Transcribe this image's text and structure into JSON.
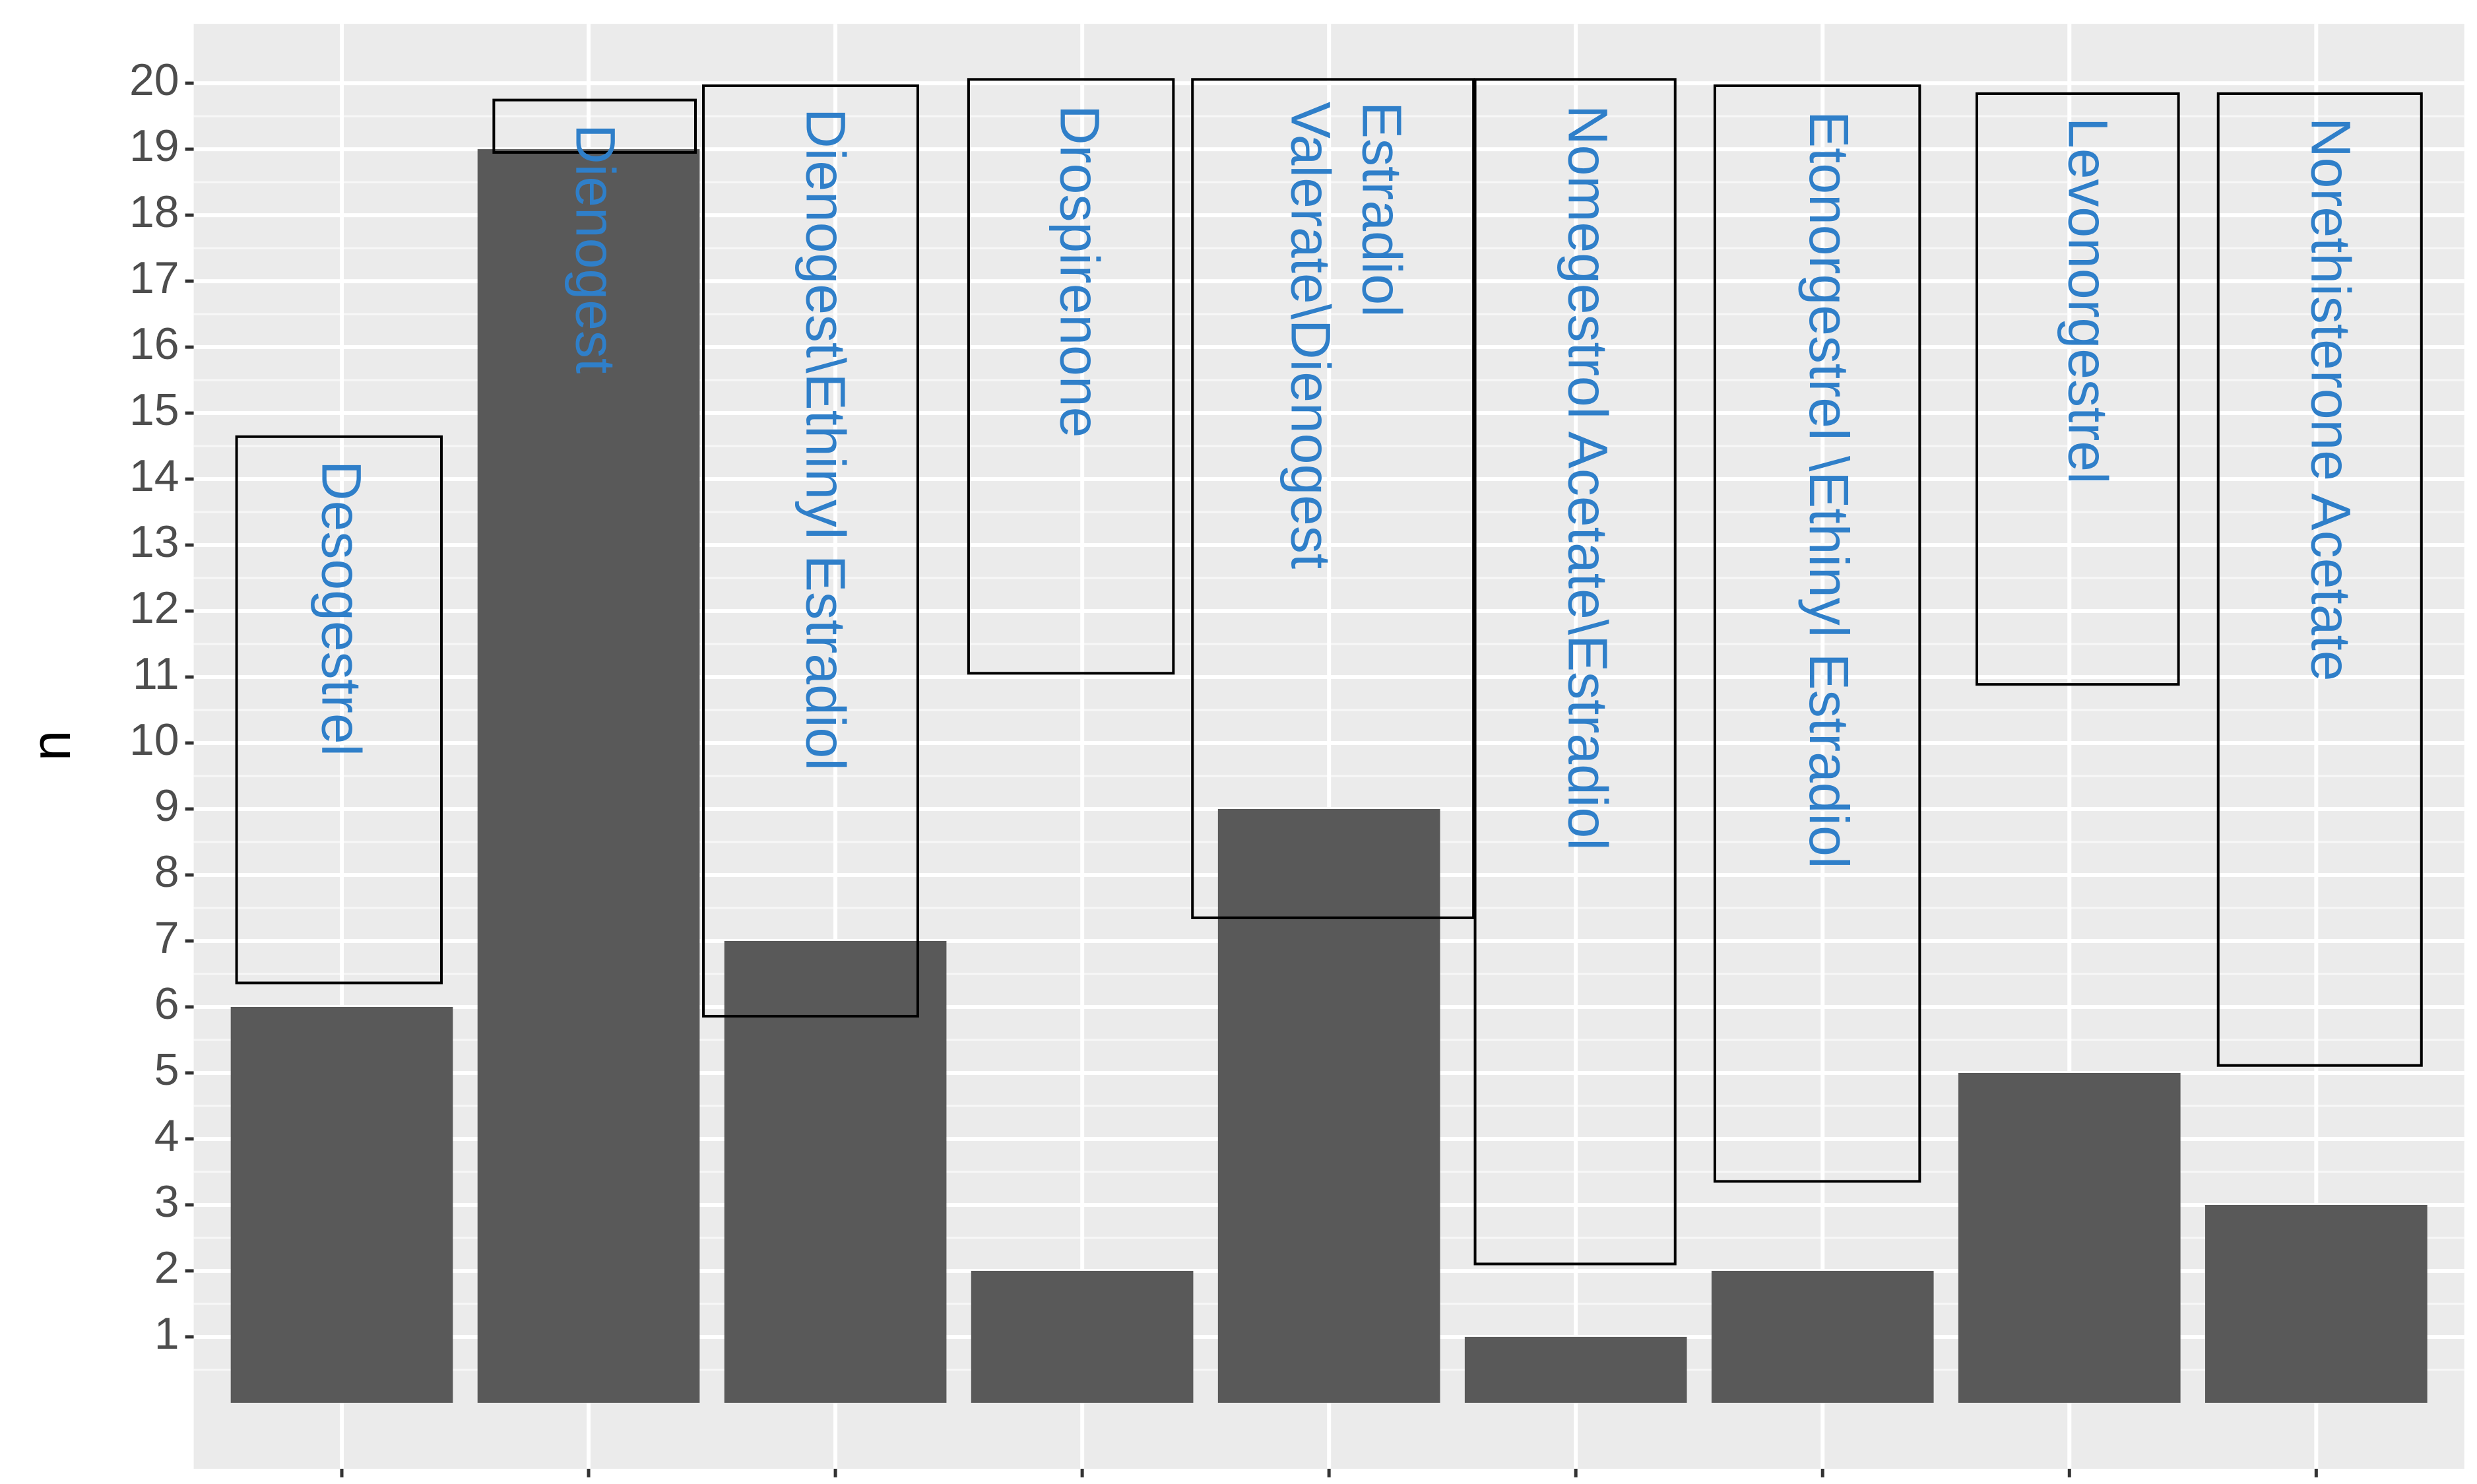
{
  "chart_data": {
    "type": "bar",
    "y_label": "n",
    "categories": [
      "Desogestrel",
      "Dienogest",
      "Dienogest\\Ethinyl Estradiol",
      "Drospirenone",
      "Estradiol\nValerate\\Dienogest",
      "Nomegestrol Acetate\\Estradiol",
      "Etonorgestrel \\Ethinyl Estradiol",
      "Levonorgestrel",
      "Norethisterone Acetate"
    ],
    "values": [
      6,
      19,
      7,
      2,
      9,
      1,
      2,
      5,
      3
    ],
    "color": "#595959",
    "ylim": [
      -1,
      20.9
    ],
    "yticks": [
      1,
      2,
      3,
      4,
      5,
      6,
      7,
      8,
      9,
      10,
      11,
      12,
      13,
      14,
      15,
      16,
      17,
      18,
      19,
      20
    ],
    "grid": true
  }
}
